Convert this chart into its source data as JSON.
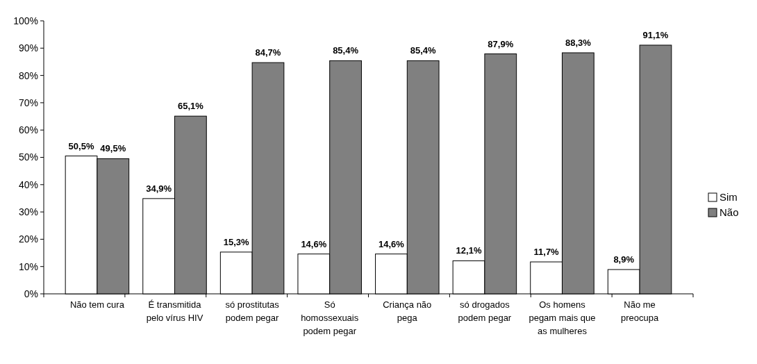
{
  "chart_data": {
    "type": "bar",
    "categories": [
      "Não tem cura",
      "É transmitida pelo vírus HIV",
      "só prostitutas podem pegar",
      "Só homossexuais podem pegar",
      "Criança não pega",
      "só drogados podem pegar",
      "Os homens pegam mais que as mulheres",
      "Não me preocupa"
    ],
    "series": [
      {
        "name": "Sim",
        "color": "#ffffff",
        "values": [
          50.5,
          34.9,
          15.3,
          14.6,
          14.6,
          12.1,
          11.7,
          8.9
        ],
        "value_labels": [
          "50,5%",
          "34,9%",
          "15,3%",
          "14,6%",
          "14,6%",
          "12,1%",
          "11,7%",
          "8,9%"
        ]
      },
      {
        "name": "Não",
        "color": "#808080",
        "values": [
          49.5,
          65.1,
          84.7,
          85.4,
          85.4,
          87.9,
          88.3,
          91.1
        ],
        "value_labels": [
          "49,5%",
          "65,1%",
          "84,7%",
          "85,4%",
          "85,4%",
          "87,9%",
          "88,3%",
          "91,1%"
        ]
      }
    ],
    "ylim": [
      0,
      100
    ],
    "yticks": [
      {
        "value": 0,
        "label": "0%"
      },
      {
        "value": 10,
        "label": "10%"
      },
      {
        "value": 20,
        "label": "20%"
      },
      {
        "value": 30,
        "label": "30%"
      },
      {
        "value": 40,
        "label": "40%"
      },
      {
        "value": 50,
        "label": "50%"
      },
      {
        "value": 60,
        "label": "60%"
      },
      {
        "value": 70,
        "label": "70%"
      },
      {
        "value": 80,
        "label": "80%"
      },
      {
        "value": 90,
        "label": "90%"
      },
      {
        "value": 100,
        "label": "100%"
      }
    ],
    "legend": "right"
  }
}
